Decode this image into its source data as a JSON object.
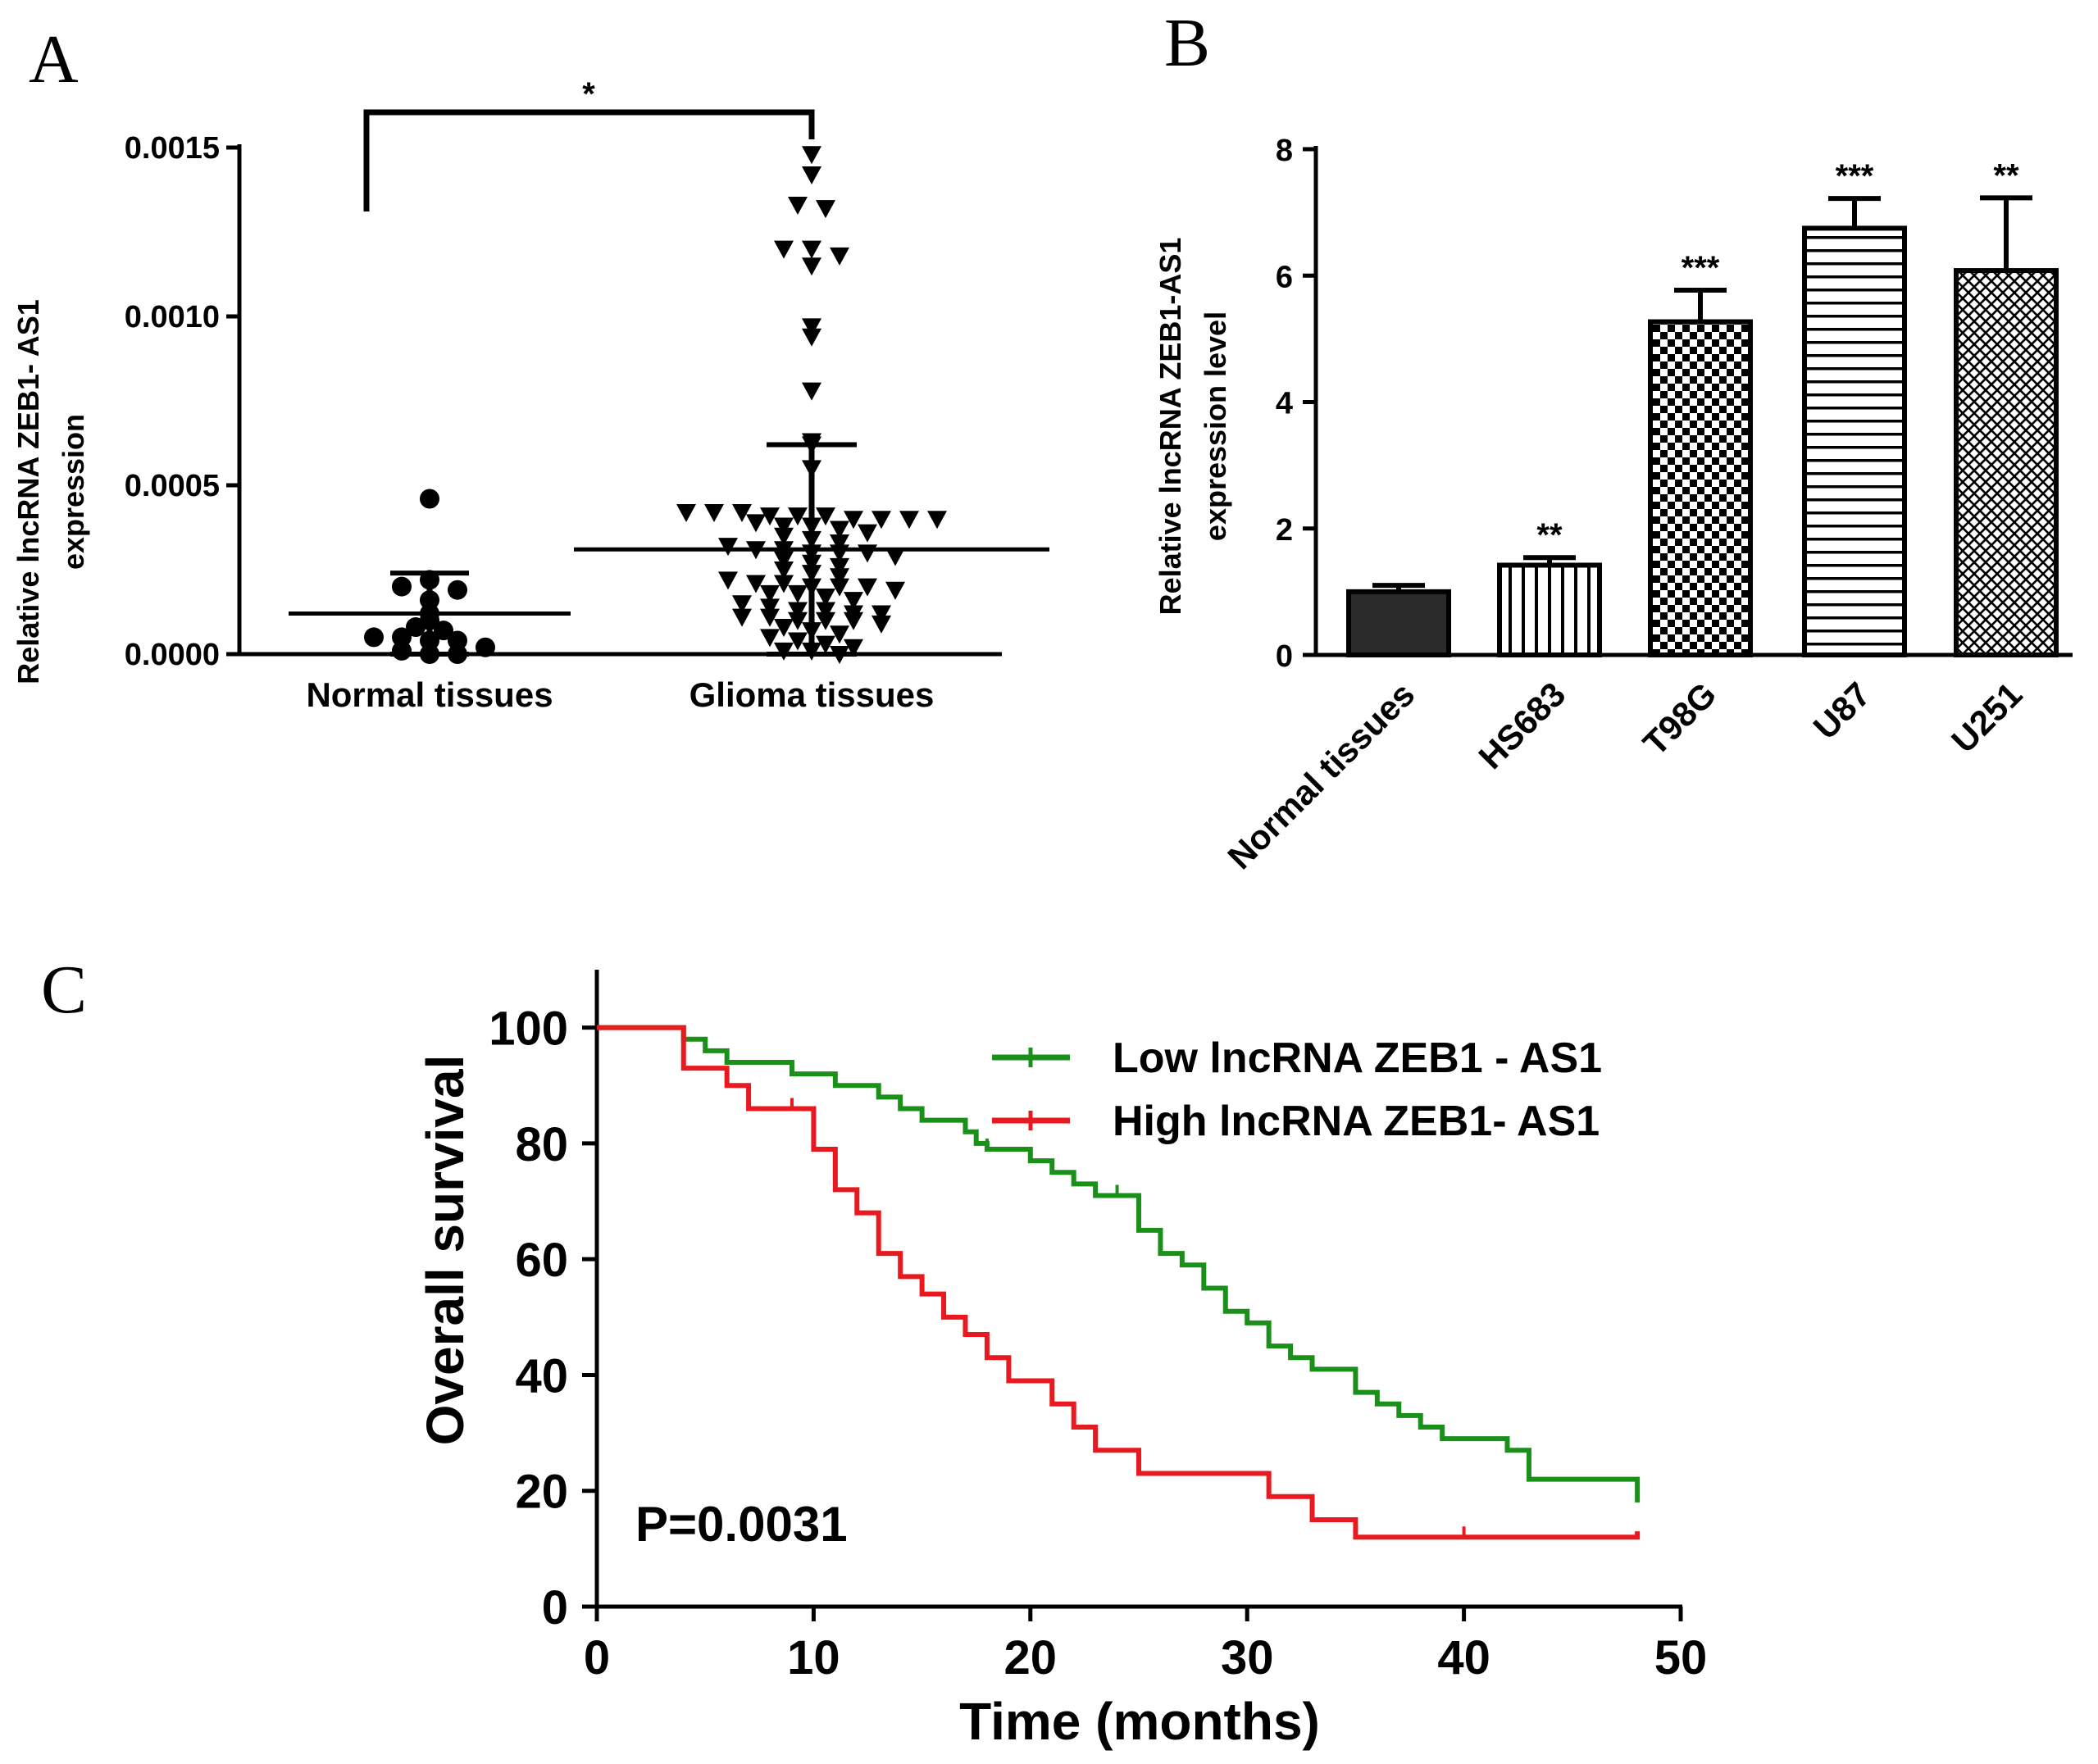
{
  "chart_data": [
    {
      "panel": "A",
      "type": "scatter",
      "ylabel_line1": "Relative lncRNA ZEB1- AS1",
      "ylabel_line2": "expression",
      "ylim": [
        0,
        0.0015
      ],
      "yticks": [
        "0.0000",
        "0.0005",
        "0.0010",
        "0.0015"
      ],
      "categories": [
        "Normal tissues",
        "Glioma tissues"
      ],
      "significance": "*",
      "groups": [
        {
          "name": "Normal tissues",
          "marker": "circle",
          "mean": 0.00012,
          "sd": 0.00012,
          "values": [
            0.00046,
            0.0002,
            0.00022,
            0.00019,
            0.00016,
            0.00012,
            0.0001,
            8e-05,
            7e-05,
            5e-05,
            5e-05,
            4e-05,
            4e-05,
            2e-05,
            1e-05,
            0.0,
            0.0
          ]
        },
        {
          "name": "Glioma tissues",
          "marker": "triangle-down",
          "mean": 0.00031,
          "sd": 0.00031,
          "values": [
            0.00148,
            0.00142,
            0.00133,
            0.00132,
            0.0012,
            0.0012,
            0.00118,
            0.00115,
            0.00097,
            0.00094,
            0.00078,
            0.00063,
            0.00062,
            0.00055,
            0.00042,
            0.00042,
            0.00042,
            0.00041,
            0.00041,
            0.00041,
            0.0004,
            0.0004,
            0.0004,
            0.0004,
            0.00039,
            0.00038,
            0.00038,
            0.00037,
            0.00036,
            0.00035,
            0.00034,
            0.00033,
            0.00032,
            0.00031,
            0.00031,
            0.0003,
            0.0003,
            0.0003,
            0.00029,
            0.00028,
            0.00027,
            0.00026,
            0.00025,
            0.00024,
            0.00023,
            0.00022,
            0.00021,
            0.00021,
            0.0002,
            0.0002,
            0.0002,
            0.00019,
            0.00018,
            0.00018,
            0.00017,
            0.00016,
            0.00015,
            0.00014,
            0.00013,
            0.00013,
            0.00012,
            0.00012,
            0.00011,
            0.00011,
            0.0001,
            0.0001,
            0.0001,
            9e-05,
            8e-05,
            7e-05,
            6e-05,
            5e-05,
            4e-05,
            3e-05,
            2e-05,
            1e-05,
            1e-05,
            0.0
          ]
        }
      ]
    },
    {
      "panel": "B",
      "type": "bar",
      "ylabel_line1": "Relative lncRNA ZEB1-AS1",
      "ylabel_line2": "expression level",
      "ylim": [
        0,
        8
      ],
      "yticks": [
        "0",
        "2",
        "4",
        "6",
        "8"
      ],
      "categories": [
        "Normal  tissues",
        "HS683",
        "T98G",
        "U87",
        "U251"
      ],
      "values": [
        1.0,
        1.42,
        5.27,
        6.75,
        6.08
      ],
      "errors": [
        0.1,
        0.12,
        0.5,
        0.47,
        1.15
      ],
      "significance": [
        "",
        "**",
        "***",
        "***",
        "**"
      ],
      "patterns": [
        "solid-dark",
        "vertical-lines",
        "checker",
        "horizontal-lines",
        "crosshatch"
      ]
    },
    {
      "panel": "C",
      "type": "line",
      "subtype": "kaplan-meier",
      "xlabel": "Time (months)",
      "ylabel": "Overall survival",
      "xlim": [
        0,
        50
      ],
      "ylim": [
        0,
        110
      ],
      "xticks": [
        "0",
        "10",
        "20",
        "30",
        "40",
        "50"
      ],
      "yticks": [
        "0",
        "20",
        "40",
        "60",
        "80",
        "100"
      ],
      "annotation": "P=0.0031",
      "series": [
        {
          "name": "Low lncRNA ZEB1 - AS1",
          "color": "#1a8f1a",
          "steps": [
            [
              0,
              100
            ],
            [
              3,
              100
            ],
            [
              4,
              98
            ],
            [
              5,
              96
            ],
            [
              6,
              94
            ],
            [
              9,
              92
            ],
            [
              11,
              90
            ],
            [
              13,
              88
            ],
            [
              14,
              86
            ],
            [
              15,
              84
            ],
            [
              17,
              82
            ],
            [
              17.5,
              80
            ],
            [
              18,
              79
            ],
            [
              20,
              77
            ],
            [
              21,
              75
            ],
            [
              22,
              73
            ],
            [
              23,
              71
            ],
            [
              25,
              65
            ],
            [
              26,
              61
            ],
            [
              27,
              59
            ],
            [
              28,
              55
            ],
            [
              29,
              51
            ],
            [
              30,
              49
            ],
            [
              31,
              45
            ],
            [
              32,
              43
            ],
            [
              33,
              41
            ],
            [
              35,
              37
            ],
            [
              36,
              35
            ],
            [
              37,
              33
            ],
            [
              38,
              31
            ],
            [
              39,
              29
            ],
            [
              42,
              27
            ],
            [
              43,
              22
            ],
            [
              48,
              22
            ],
            [
              48,
              18
            ]
          ],
          "censored": [
            [
              9,
              92
            ],
            [
              18,
              79
            ],
            [
              23,
              71
            ],
            [
              24,
              71
            ]
          ]
        },
        {
          "name": "High lncRNA ZEB1- AS1",
          "color": "#e8191f",
          "steps": [
            [
              0,
              100
            ],
            [
              4,
              93
            ],
            [
              6,
              90
            ],
            [
              7,
              86
            ],
            [
              10,
              79
            ],
            [
              11,
              72
            ],
            [
              12,
              68
            ],
            [
              13,
              61
            ],
            [
              14,
              57
            ],
            [
              15,
              54
            ],
            [
              16,
              50
            ],
            [
              17,
              47
            ],
            [
              18,
              43
            ],
            [
              19,
              39
            ],
            [
              21,
              35
            ],
            [
              22,
              31
            ],
            [
              23,
              27
            ],
            [
              25,
              23
            ],
            [
              31,
              19
            ],
            [
              33,
              15
            ],
            [
              35,
              12
            ],
            [
              48,
              12
            ],
            [
              48,
              13
            ]
          ],
          "censored": [
            [
              9,
              86
            ],
            [
              40,
              12
            ]
          ]
        }
      ]
    }
  ],
  "panel_labels": {
    "a": "A",
    "b": "B",
    "c": "C"
  }
}
